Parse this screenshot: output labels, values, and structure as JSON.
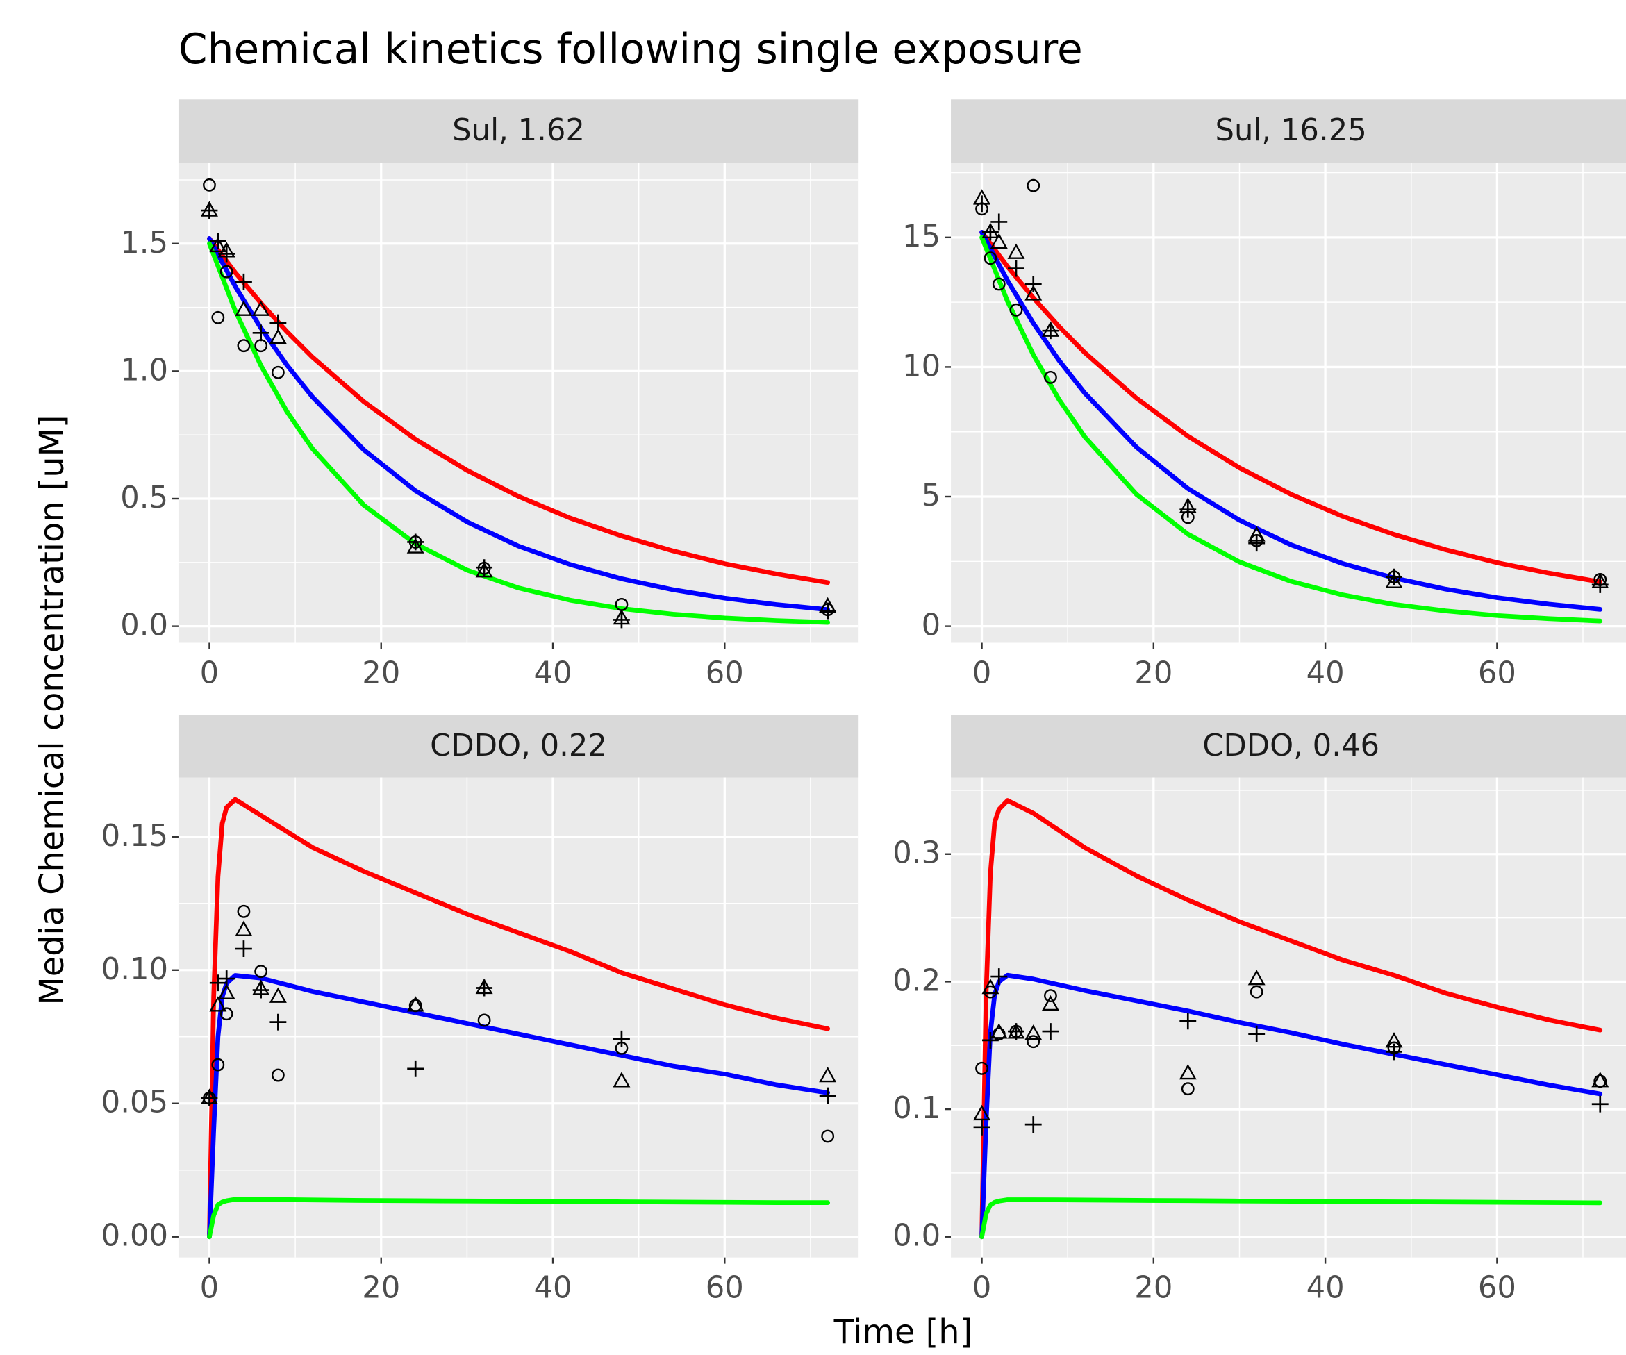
{
  "title": "Chemical kinetics following single exposure",
  "x_label": "Time [h]",
  "y_label": "Media Chemical concentration [uM]",
  "chart_data": [
    {
      "type": "line",
      "strip": "Sul, 1.62",
      "xlim": [
        -3.6,
        75.6
      ],
      "xticks": [
        0,
        20,
        40,
        60
      ],
      "xminor": [
        10,
        30,
        50,
        70
      ],
      "ylim": [
        -0.065,
        1.817
      ],
      "yticks": [
        {
          "value": 0,
          "label": "0.0"
        },
        0.5,
        {
          "value": 1,
          "label": "1.0"
        },
        1.5
      ],
      "yminor": [
        0.25,
        0.75,
        1.25,
        1.75
      ],
      "grid": true,
      "series": [
        {
          "color": "#ff0000",
          "x": [
            0,
            3,
            6,
            9,
            12,
            18,
            24,
            30,
            36,
            42,
            48,
            54,
            60,
            66,
            72
          ],
          "values": [
            1.52,
            1.387,
            1.267,
            1.156,
            1.055,
            0.88,
            0.733,
            0.611,
            0.509,
            0.424,
            0.354,
            0.295,
            0.245,
            0.205,
            0.171
          ]
        },
        {
          "color": "#0000ff",
          "x": [
            0,
            3,
            6,
            9,
            12,
            18,
            24,
            30,
            36,
            42,
            48,
            54,
            60,
            66,
            72
          ],
          "values": [
            1.52,
            1.333,
            1.169,
            1.025,
            0.899,
            0.691,
            0.531,
            0.409,
            0.314,
            0.242,
            0.186,
            0.143,
            0.11,
            0.085,
            0.065
          ]
        },
        {
          "color": "#00ff00",
          "x": [
            0,
            3,
            6,
            9,
            12,
            18,
            24,
            30,
            36,
            42,
            48,
            54,
            60,
            66,
            72
          ],
          "values": [
            1.5,
            1.238,
            1.022,
            0.843,
            0.696,
            0.474,
            0.323,
            0.22,
            0.15,
            0.102,
            0.069,
            0.047,
            0.032,
            0.022,
            0.015
          ]
        }
      ],
      "points": [
        {
          "marker": "circle",
          "color": "#000000",
          "x": [
            0,
            1,
            2,
            4,
            6,
            8,
            24,
            32,
            48,
            72
          ],
          "values": [
            1.73,
            1.21,
            1.39,
            1.1,
            1.1,
            0.995,
            0.33,
            0.227,
            0.085,
            0.065
          ]
        },
        {
          "marker": "triangle",
          "color": "#000000",
          "x": [
            0,
            1,
            2,
            4,
            6,
            8,
            24,
            32,
            48,
            72
          ],
          "values": [
            1.63,
            1.49,
            1.47,
            1.24,
            1.24,
            1.13,
            0.309,
            0.215,
            0.03,
            0.077
          ]
        },
        {
          "marker": "plus",
          "color": "#000000",
          "x": [
            0,
            1,
            2,
            4,
            6,
            8,
            24,
            32,
            48,
            72
          ],
          "values": [
            1.63,
            1.51,
            1.46,
            1.35,
            1.15,
            1.19,
            0.33,
            0.23,
            0.025,
            0.06
          ]
        }
      ]
    },
    {
      "type": "line",
      "strip": "Sul, 16.25",
      "xlim": [
        -3.6,
        75.6
      ],
      "xticks": [
        0,
        20,
        40,
        60
      ],
      "xminor": [
        10,
        30,
        50,
        70
      ],
      "ylim": [
        -0.64,
        17.88
      ],
      "yticks": [
        0,
        5,
        10,
        15
      ],
      "yminor": [
        2.5,
        7.5,
        12.5,
        17.5
      ],
      "grid": true,
      "series": [
        {
          "color": "#ff0000",
          "x": [
            0,
            3,
            6,
            9,
            12,
            18,
            24,
            30,
            36,
            42,
            48,
            54,
            60,
            66,
            72
          ],
          "values": [
            15.2,
            13.87,
            12.67,
            11.56,
            10.55,
            8.8,
            7.33,
            6.11,
            5.09,
            4.24,
            3.54,
            2.95,
            2.45,
            2.05,
            1.71
          ]
        },
        {
          "color": "#0000ff",
          "x": [
            0,
            3,
            6,
            9,
            12,
            18,
            24,
            30,
            36,
            42,
            48,
            54,
            60,
            66,
            72
          ],
          "values": [
            15.2,
            13.33,
            11.69,
            10.25,
            8.99,
            6.91,
            5.31,
            4.09,
            3.14,
            2.42,
            1.86,
            1.43,
            1.1,
            0.85,
            0.65
          ]
        },
        {
          "color": "#00ff00",
          "x": [
            0,
            3,
            6,
            9,
            12,
            18,
            24,
            30,
            36,
            42,
            48,
            54,
            60,
            66,
            72
          ],
          "values": [
            15,
            12.53,
            10.47,
            8.74,
            7.3,
            5.09,
            3.55,
            2.48,
            1.73,
            1.21,
            0.84,
            0.59,
            0.41,
            0.29,
            0.2
          ]
        }
      ],
      "points": [
        {
          "marker": "circle",
          "color": "#000000",
          "x": [
            0,
            1,
            2,
            4,
            6,
            8,
            24,
            32,
            48,
            72
          ],
          "values": [
            16.1,
            14.2,
            13.2,
            12.2,
            17,
            9.6,
            4.2,
            3.3,
            1.9,
            1.8
          ]
        },
        {
          "marker": "triangle",
          "color": "#000000",
          "x": [
            0,
            1,
            2,
            4,
            6,
            8,
            24,
            32,
            48,
            72
          ],
          "values": [
            16.5,
            15.2,
            14.8,
            14.4,
            12.8,
            11.4,
            4.6,
            3.5,
            1.7,
            1.7
          ]
        },
        {
          "marker": "plus",
          "color": "#000000",
          "x": [
            0,
            1,
            2,
            4,
            6,
            8,
            24,
            32,
            48,
            72
          ],
          "values": [
            16.3,
            15.2,
            15.6,
            13.8,
            13.2,
            11.4,
            4.5,
            3.2,
            1.9,
            1.6
          ]
        }
      ]
    },
    {
      "type": "line",
      "strip": "CDDO, 0.22",
      "xlim": [
        -3.6,
        75.6
      ],
      "xticks": [
        0,
        20,
        40,
        60
      ],
      "xminor": [
        10,
        30,
        50,
        70
      ],
      "ylim": [
        -0.0078,
        0.1722
      ],
      "yticks": [
        {
          "value": 0,
          "label": "0.00"
        },
        0.05,
        {
          "value": 0.1,
          "label": "0.10"
        },
        0.15
      ],
      "yminor": [
        0.025,
        0.075,
        0.125
      ],
      "grid": true,
      "series": [
        {
          "color": "#ff0000",
          "x": [
            0,
            0.5,
            1,
            1.5,
            2,
            3,
            6,
            12,
            18,
            24,
            30,
            36,
            42,
            48,
            54,
            60,
            66,
            72
          ],
          "values": [
            0,
            0.09,
            0.135,
            0.155,
            0.161,
            0.164,
            0.158,
            0.146,
            0.137,
            0.129,
            0.121,
            0.114,
            0.107,
            0.099,
            0.093,
            0.087,
            0.082,
            0.078
          ]
        },
        {
          "color": "#0000ff",
          "x": [
            0,
            0.5,
            1,
            1.5,
            2,
            3,
            6,
            12,
            18,
            24,
            30,
            36,
            42,
            48,
            54,
            60,
            66,
            72
          ],
          "values": [
            0,
            0.04,
            0.075,
            0.09,
            0.095,
            0.098,
            0.097,
            0.092,
            0.088,
            0.084,
            0.08,
            0.076,
            0.072,
            0.068,
            0.064,
            0.061,
            0.057,
            0.054
          ]
        },
        {
          "color": "#00ff00",
          "x": [
            0,
            0.5,
            1,
            1.5,
            2,
            3,
            6,
            12,
            18,
            24,
            30,
            36,
            42,
            48,
            54,
            60,
            66,
            72
          ],
          "values": [
            0,
            0.008,
            0.012,
            0.013,
            0.0135,
            0.014,
            0.014,
            0.0138,
            0.0136,
            0.0135,
            0.0134,
            0.0133,
            0.0132,
            0.0131,
            0.013,
            0.0129,
            0.0128,
            0.0128
          ]
        }
      ],
      "points": [
        {
          "marker": "circle",
          "color": "#000000",
          "x": [
            0,
            1,
            2,
            4,
            6,
            8,
            24,
            32,
            48,
            72
          ],
          "values": [
            0.052,
            0.0645,
            0.0836,
            0.122,
            0.0995,
            0.0606,
            0.0867,
            0.0812,
            0.0707,
            0.0377
          ]
        },
        {
          "marker": "triangle",
          "color": "#000000",
          "x": [
            0,
            1,
            2,
            4,
            6,
            8,
            24,
            32,
            48,
            72
          ],
          "values": [
            0.052,
            0.0867,
            0.0913,
            0.115,
            0.0929,
            0.09,
            0.0867,
            0.0933,
            0.0583,
            0.0602
          ]
        },
        {
          "marker": "plus",
          "color": "#000000",
          "x": [
            0,
            1,
            2,
            4,
            6,
            8,
            24,
            32,
            48,
            72
          ],
          "values": [
            0.052,
            0.0952,
            0.0968,
            0.108,
            0.0925,
            0.0805,
            0.063,
            0.0933,
            0.0742,
            0.0529
          ]
        }
      ]
    },
    {
      "type": "line",
      "strip": "CDDO, 0.46",
      "xlim": [
        -3.6,
        75.6
      ],
      "xticks": [
        0,
        20,
        40,
        60
      ],
      "xminor": [
        10,
        30,
        50,
        70
      ],
      "ylim": [
        -0.0163,
        0.36
      ],
      "yticks": [
        {
          "value": 0,
          "label": "0.0"
        },
        0.1,
        0.2,
        0.3
      ],
      "yminor": [
        0.05,
        0.15,
        0.25,
        0.35
      ],
      "grid": true,
      "series": [
        {
          "color": "#ff0000",
          "x": [
            0,
            0.5,
            1,
            1.5,
            2,
            3,
            6,
            12,
            18,
            24,
            30,
            36,
            42,
            48,
            54,
            60,
            66,
            72
          ],
          "values": [
            0,
            0.19,
            0.285,
            0.325,
            0.335,
            0.342,
            0.332,
            0.305,
            0.283,
            0.264,
            0.247,
            0.232,
            0.217,
            0.205,
            0.191,
            0.18,
            0.17,
            0.162
          ]
        },
        {
          "color": "#0000ff",
          "x": [
            0,
            0.5,
            1,
            1.5,
            2,
            3,
            6,
            12,
            18,
            24,
            30,
            36,
            42,
            48,
            54,
            60,
            66,
            72
          ],
          "values": [
            0,
            0.09,
            0.16,
            0.19,
            0.2,
            0.205,
            0.202,
            0.193,
            0.185,
            0.177,
            0.168,
            0.16,
            0.151,
            0.143,
            0.135,
            0.127,
            0.119,
            0.112
          ]
        },
        {
          "color": "#00ff00",
          "x": [
            0,
            0.5,
            1,
            1.5,
            2,
            3,
            6,
            12,
            18,
            24,
            30,
            36,
            42,
            48,
            54,
            60,
            66,
            72
          ],
          "values": [
            0,
            0.018,
            0.025,
            0.027,
            0.028,
            0.029,
            0.029,
            0.0288,
            0.0285,
            0.0283,
            0.028,
            0.0278,
            0.0276,
            0.0274,
            0.0272,
            0.027,
            0.0268,
            0.0266
          ]
        }
      ],
      "points": [
        {
          "marker": "circle",
          "color": "#000000",
          "x": [
            0,
            1,
            2,
            4,
            6,
            8,
            24,
            32,
            48,
            72
          ],
          "values": [
            0.132,
            0.192,
            0.159,
            0.161,
            0.153,
            0.189,
            0.116,
            0.192,
            0.148,
            0.122
          ]
        },
        {
          "marker": "triangle",
          "color": "#000000",
          "x": [
            0,
            1,
            2,
            4,
            6,
            8,
            24,
            32,
            48,
            72
          ],
          "values": [
            0.096,
            0.195,
            0.16,
            0.16,
            0.159,
            0.182,
            0.128,
            0.202,
            0.153,
            0.122
          ]
        },
        {
          "marker": "plus",
          "color": "#000000",
          "x": [
            0,
            1,
            2,
            4,
            6,
            8,
            24,
            32,
            48,
            72
          ],
          "values": [
            0.086,
            0.154,
            0.204,
            0.161,
            0.088,
            0.161,
            0.169,
            0.159,
            0.145,
            0.104
          ]
        }
      ]
    }
  ]
}
